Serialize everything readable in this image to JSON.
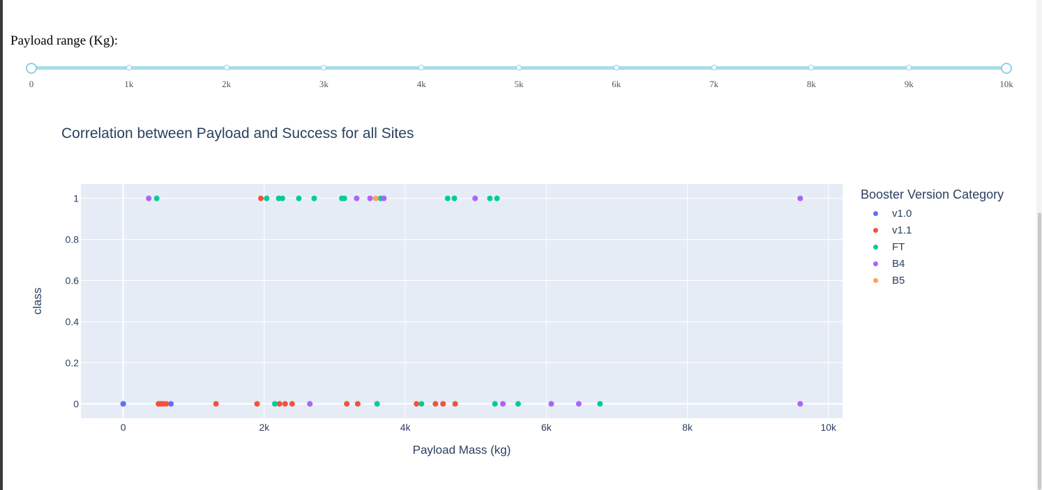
{
  "slider": {
    "label": "Payload range (Kg):",
    "min": 0,
    "max": 10000,
    "step": 1000,
    "value": [
      0,
      10000
    ],
    "marks": [
      "0",
      "1k",
      "2k",
      "3k",
      "4k",
      "5k",
      "6k",
      "7k",
      "8k",
      "9k",
      "10k"
    ],
    "color": "#a7dcee"
  },
  "chart_data": {
    "type": "scatter",
    "title": "Correlation between Payload and Success for all Sites",
    "xlabel": "Payload Mass (kg)",
    "ylabel": "class",
    "xlim": [
      -600,
      10200
    ],
    "ylim": [
      -0.07,
      1.07
    ],
    "xticks": [
      0,
      2000,
      4000,
      6000,
      8000,
      10000
    ],
    "xtick_labels": [
      "0",
      "2k",
      "4k",
      "6k",
      "8k",
      "10k"
    ],
    "yticks": [
      0,
      0.2,
      0.4,
      0.6,
      0.8,
      1
    ],
    "ytick_labels": [
      "0",
      "0.2",
      "0.4",
      "0.6",
      "0.8",
      "1"
    ],
    "grid": true,
    "legend_title": "Booster Version Category",
    "legend_position": "right",
    "background": "#e5ecf6",
    "series": [
      {
        "name": "v1.0",
        "color": "#636efa",
        "points": [
          [
            0,
            0
          ],
          [
            0,
            0
          ],
          [
            525,
            0
          ],
          [
            677,
            0
          ]
        ]
      },
      {
        "name": "v1.1",
        "color": "#ef553b",
        "points": [
          [
            500,
            0
          ],
          [
            540,
            0
          ],
          [
            570,
            0
          ],
          [
            610,
            0
          ],
          [
            1316,
            0
          ],
          [
            1898,
            0
          ],
          [
            1952,
            1
          ],
          [
            2216,
            0
          ],
          [
            2296,
            0
          ],
          [
            2395,
            0
          ],
          [
            3170,
            0
          ],
          [
            3325,
            0
          ],
          [
            4159,
            0
          ],
          [
            4428,
            0
          ],
          [
            4535,
            0
          ],
          [
            4707,
            0
          ]
        ]
      },
      {
        "name": "FT",
        "color": "#00cc96",
        "points": [
          [
            475,
            1
          ],
          [
            2034,
            1
          ],
          [
            2150,
            0
          ],
          [
            2205,
            1
          ],
          [
            2257,
            1
          ],
          [
            2490,
            1
          ],
          [
            2708,
            1
          ],
          [
            3100,
            1
          ],
          [
            3136,
            1
          ],
          [
            3600,
            0
          ],
          [
            3650,
            1
          ],
          [
            4230,
            0
          ],
          [
            4600,
            1
          ],
          [
            4696,
            1
          ],
          [
            5200,
            1
          ],
          [
            5271,
            0
          ],
          [
            5300,
            1
          ],
          [
            5600,
            0
          ],
          [
            6761,
            0
          ]
        ]
      },
      {
        "name": "B4",
        "color": "#ab63fa",
        "points": [
          [
            362,
            1
          ],
          [
            2647,
            0
          ],
          [
            3310,
            1
          ],
          [
            3500,
            1
          ],
          [
            3696,
            1
          ],
          [
            4990,
            1
          ],
          [
            5384,
            0
          ],
          [
            6070,
            0
          ],
          [
            6460,
            0
          ],
          [
            9600,
            1
          ],
          [
            9600,
            0
          ]
        ]
      },
      {
        "name": "B5",
        "color": "#ffa15a",
        "points": [
          [
            3581,
            1
          ]
        ]
      }
    ]
  }
}
